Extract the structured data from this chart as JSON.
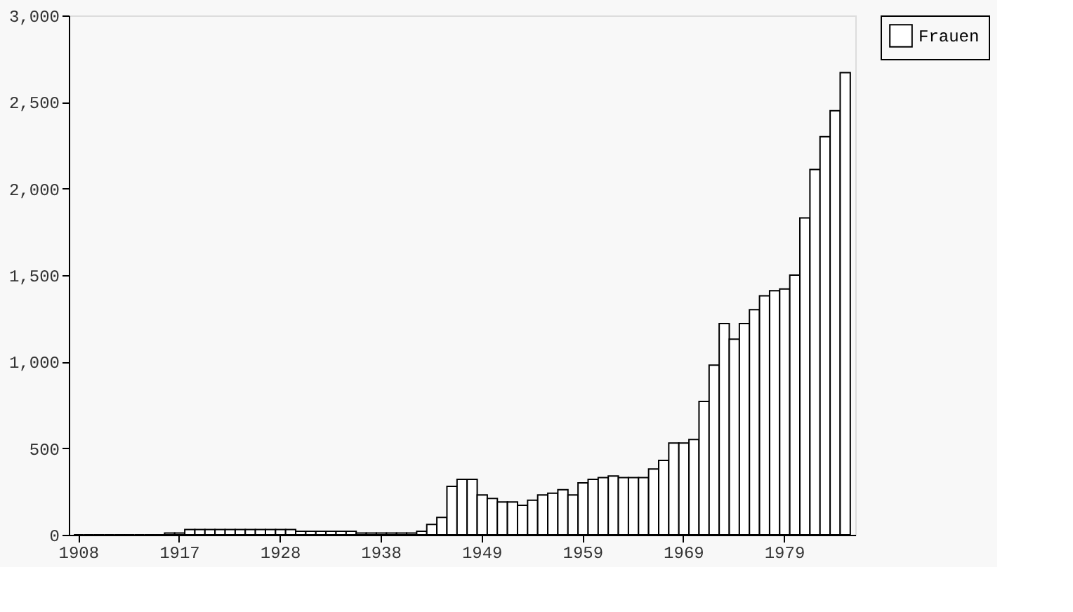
{
  "chart_data": {
    "type": "bar",
    "categories": [
      "1908",
      null,
      null,
      null,
      null,
      null,
      null,
      null,
      null,
      null,
      "1917",
      null,
      null,
      null,
      null,
      null,
      null,
      null,
      null,
      null,
      "1928",
      null,
      null,
      null,
      null,
      null,
      null,
      null,
      null,
      null,
      "1938",
      null,
      null,
      null,
      null,
      null,
      null,
      null,
      null,
      null,
      "1949",
      null,
      null,
      null,
      null,
      null,
      null,
      null,
      null,
      null,
      "1959",
      null,
      null,
      null,
      null,
      null,
      null,
      null,
      null,
      null,
      "1969",
      null,
      null,
      null,
      null,
      null,
      null,
      null,
      null,
      null,
      "1979",
      null,
      null,
      null,
      null,
      null,
      null
    ],
    "series": [
      {
        "name": "Frauen",
        "color": "#ffffff",
        "values": [
          0,
          0,
          0,
          0,
          0,
          0,
          0,
          0,
          0,
          10,
          10,
          30,
          30,
          30,
          30,
          30,
          30,
          30,
          30,
          30,
          30,
          30,
          20,
          20,
          20,
          20,
          20,
          20,
          10,
          10,
          10,
          10,
          10,
          10,
          20,
          60,
          100,
          280,
          320,
          320,
          230,
          210,
          190,
          190,
          170,
          200,
          230,
          240,
          260,
          230,
          300,
          320,
          330,
          340,
          330,
          330,
          330,
          380,
          430,
          530,
          530,
          550,
          770,
          980,
          1220,
          1130,
          1220,
          1300,
          1380,
          1410,
          1420,
          1500,
          1830,
          2110,
          2300,
          2450,
          2670
        ]
      }
    ],
    "ylim": [
      0,
      3000
    ],
    "yticks": [
      0,
      {
        "value": 500,
        "label": "500"
      },
      {
        "value": 1000,
        "label": "1,000"
      },
      {
        "value": 1500,
        "label": "1,500"
      },
      {
        "value": 2000,
        "label": "2,000"
      },
      {
        "value": 2500,
        "label": "2,500"
      },
      {
        "value": 3000,
        "label": "3,000"
      }
    ],
    "legend": "right",
    "grid": false
  }
}
